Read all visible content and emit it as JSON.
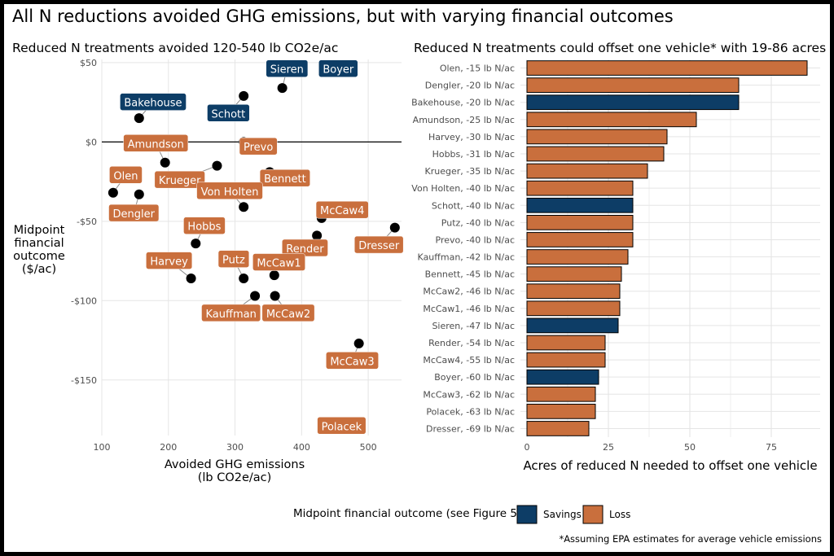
{
  "title": "All N reductions avoided GHG emissions, but with varying financial outcomes",
  "colors": {
    "savings": "#0d3d66",
    "loss": "#c96f3d",
    "point": "#000000",
    "grid": "#e5e5e5"
  },
  "chart_data": [
    {
      "type": "scatter",
      "title": "Reduced N treatments avoided 120-540 lb CO2e/ac",
      "xlabel": [
        "Avoided GHG emissions",
        "(lb CO2e/ac)"
      ],
      "ylabel": [
        "Midpoint",
        "financial",
        "outcome",
        "($/ac)"
      ],
      "xlim": [
        100,
        550
      ],
      "ylim": [
        -185,
        52
      ],
      "xticks": [
        100,
        200,
        300,
        400,
        500
      ],
      "xtick_labels": [
        "100",
        "200",
        "300",
        "400",
        "500"
      ],
      "yticks": [
        50,
        0,
        -50,
        -100,
        -150
      ],
      "ytick_labels": [
        "$50",
        "$0",
        "-$50",
        "-$100",
        "-$150"
      ],
      "points": [
        {
          "name": "Boyer",
          "x": 469,
          "y": 44,
          "outcome": "Savings",
          "lx": 455,
          "ly": 46
        },
        {
          "name": "Sieren",
          "x": 371,
          "y": 34,
          "outcome": "Savings",
          "lx": 378,
          "ly": 46
        },
        {
          "name": "Schott",
          "x": 313,
          "y": 29,
          "outcome": "Savings",
          "lx": 290,
          "ly": 18
        },
        {
          "name": "Bakehouse",
          "x": 156,
          "y": 15,
          "outcome": "Savings",
          "lx": 177,
          "ly": 25
        },
        {
          "name": "Amundson",
          "x": 195,
          "y": -13,
          "outcome": "Loss",
          "lx": 181,
          "ly": -1
        },
        {
          "name": "Prevo",
          "x": 313,
          "y": 0,
          "outcome": "Loss",
          "lx": 335,
          "ly": -3
        },
        {
          "name": "Krueger",
          "x": 273,
          "y": -15,
          "outcome": "Loss",
          "lx": 217,
          "ly": -24
        },
        {
          "name": "Bennett",
          "x": 352,
          "y": -19,
          "outcome": "Loss",
          "lx": 375,
          "ly": -23
        },
        {
          "name": "Olen",
          "x": 117,
          "y": -32,
          "outcome": "Loss",
          "lx": 136,
          "ly": -21
        },
        {
          "name": "Von Holten",
          "x": 313,
          "y": -41,
          "outcome": "Loss",
          "lx": 292,
          "ly": -31
        },
        {
          "name": "Dengler",
          "x": 156,
          "y": -33,
          "outcome": "Loss",
          "lx": 148,
          "ly": -45
        },
        {
          "name": "McCaw4",
          "x": 430,
          "y": -48,
          "outcome": "Loss",
          "lx": 461,
          "ly": -43
        },
        {
          "name": "Dresser",
          "x": 540,
          "y": -54,
          "outcome": "Loss",
          "lx": 516,
          "ly": -65
        },
        {
          "name": "Render",
          "x": 423,
          "y": -59,
          "outcome": "Loss",
          "lx": 405,
          "ly": -67
        },
        {
          "name": "Hobbs",
          "x": 241,
          "y": -64,
          "outcome": "Loss",
          "lx": 254,
          "ly": -53
        },
        {
          "name": "Putz",
          "x": 313,
          "y": -86,
          "outcome": "Loss",
          "lx": 298,
          "ly": -74
        },
        {
          "name": "McCaw1",
          "x": 359,
          "y": -84,
          "outcome": "Loss",
          "lx": 366,
          "ly": -76
        },
        {
          "name": "Harvey",
          "x": 234,
          "y": -86,
          "outcome": "Loss",
          "lx": 201,
          "ly": -75
        },
        {
          "name": "Kauffman",
          "x": 330,
          "y": -97,
          "outcome": "Loss",
          "lx": 294,
          "ly": -108
        },
        {
          "name": "McCaw2",
          "x": 360,
          "y": -97,
          "outcome": "Loss",
          "lx": 380,
          "ly": -108
        },
        {
          "name": "McCaw3",
          "x": 486,
          "y": -127,
          "outcome": "Loss",
          "lx": 476,
          "ly": -138
        },
        {
          "name": "Polacek",
          "x": 488,
          "y": -178,
          "outcome": "Loss",
          "lx": 460,
          "ly": -179
        }
      ]
    },
    {
      "type": "bar",
      "orientation": "horizontal",
      "title": "Reduced N treatments could offset one vehicle* with 19-86 acres",
      "xlabel": "Acres of reduced N needed to offset one vehicle",
      "xlim": [
        -2,
        90
      ],
      "xticks": [
        0,
        25,
        50,
        75
      ],
      "xtick_labels": [
        "0",
        "25",
        "50",
        "75"
      ],
      "categories": [
        "Olen, -15 lb N/ac",
        "Dengler, -20 lb N/ac",
        "Bakehouse, -20 lb N/ac",
        "Amundson, -25 lb N/ac",
        "Harvey, -30 lb N/ac",
        "Hobbs, -31 lb N/ac",
        "Krueger, -35 lb N/ac",
        "Von Holten, -40 lb N/ac",
        "Schott, -40 lb N/ac",
        "Putz, -40 lb N/ac",
        "Prevo, -40 lb N/ac",
        "Kauffman, -42 lb N/ac",
        "Bennett, -45 lb N/ac",
        "McCaw2, -46 lb N/ac",
        "McCaw1, -46 lb N/ac",
        "Sieren, -47 lb N/ac",
        "Render, -54 lb N/ac",
        "McCaw4, -55 lb N/ac",
        "Boyer, -60 lb N/ac",
        "McCaw3, -62 lb N/ac",
        "Polacek, -63 lb N/ac",
        "Dresser, -69 lb N/ac"
      ],
      "values": [
        86,
        65,
        65,
        52,
        43,
        42,
        37,
        32.5,
        32.5,
        32.5,
        32.5,
        31,
        29,
        28.5,
        28.5,
        28,
        24,
        24,
        22,
        21,
        21,
        19
      ],
      "outcomes": [
        "Loss",
        "Loss",
        "Savings",
        "Loss",
        "Loss",
        "Loss",
        "Loss",
        "Loss",
        "Savings",
        "Loss",
        "Loss",
        "Loss",
        "Loss",
        "Loss",
        "Loss",
        "Savings",
        "Loss",
        "Loss",
        "Savings",
        "Loss",
        "Loss",
        "Loss"
      ]
    }
  ],
  "legend": {
    "title": "Midpoint financial outcome (see Figure 5)",
    "items": [
      {
        "label": "Savings",
        "key": "savings"
      },
      {
        "label": "Loss",
        "key": "loss"
      }
    ]
  },
  "footnote": "*Assuming EPA estimates for average vehicle emissions"
}
